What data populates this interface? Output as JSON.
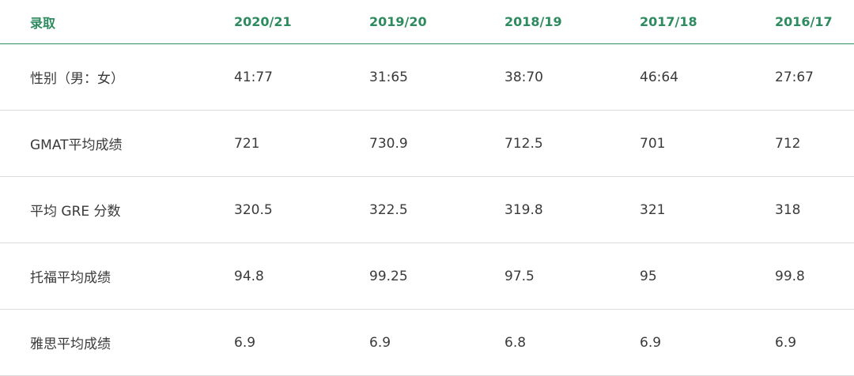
{
  "header": [
    "录取",
    "2020/21",
    "2019/20",
    "2018/19",
    "2017/18",
    "2016/17"
  ],
  "rows": [
    [
      "性别（男：女）",
      "41:77",
      "31:65",
      "38:70",
      "46:64",
      "27:67"
    ],
    [
      "GMAT平均成绩",
      "721",
      "730.9",
      "712.5",
      "701",
      "712"
    ],
    [
      "平均 GRE 分数",
      "320.5",
      "322.5",
      "319.8",
      "321",
      "318"
    ],
    [
      "托福平均成绩",
      "94.8",
      "99.25",
      "97.5",
      "95",
      "99.8"
    ],
    [
      "雅思平均成绩",
      "6.9",
      "6.9",
      "6.8",
      "6.9",
      "6.9"
    ]
  ],
  "colors": {
    "header_text": "#2e8b5f",
    "header_rule": "#2e8b5f",
    "body_text": "#3a3a3a",
    "row_rule": "#dcdcdc"
  }
}
